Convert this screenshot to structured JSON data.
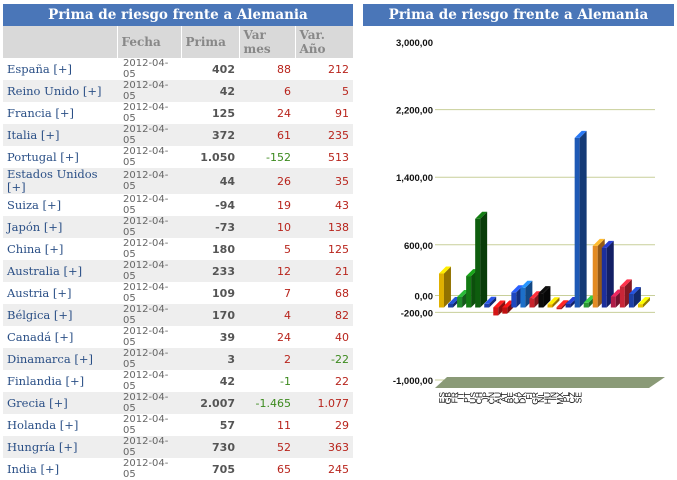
{
  "table_title": "Prima de riesgo frente a Alemania",
  "chart_title": "Prima de riesgo frente a Alemania",
  "headers": [
    "",
    "Fecha",
    "Prima",
    "Var mes",
    "Var. Año"
  ],
  "rows": [
    {
      "pais": "España [+]",
      "fecha": "2012-04-05",
      "prima": "402",
      "mes": "88",
      "anio": "212"
    },
    {
      "pais": "Reino Unido [+]",
      "fecha": "2012-04-05",
      "prima": "42",
      "mes": "6",
      "anio": "5"
    },
    {
      "pais": "Francia [+]",
      "fecha": "2012-04-05",
      "prima": "125",
      "mes": "24",
      "anio": "91"
    },
    {
      "pais": "Italia [+]",
      "fecha": "2012-04-05",
      "prima": "372",
      "mes": "61",
      "anio": "235"
    },
    {
      "pais": "Portugal [+]",
      "fecha": "2012-04-05",
      "prima": "1.050",
      "mes": "-152",
      "anio": "513"
    },
    {
      "pais": "Estados Unidos [+]",
      "fecha": "2012-04-05",
      "prima": "44",
      "mes": "26",
      "anio": "35"
    },
    {
      "pais": "Suiza [+]",
      "fecha": "2012-04-05",
      "prima": "-94",
      "mes": "19",
      "anio": "43"
    },
    {
      "pais": "Japón [+]",
      "fecha": "2012-04-05",
      "prima": "-73",
      "mes": "10",
      "anio": "138"
    },
    {
      "pais": "China [+]",
      "fecha": "2012-04-05",
      "prima": "180",
      "mes": "5",
      "anio": "125"
    },
    {
      "pais": "Australia [+]",
      "fecha": "2012-04-05",
      "prima": "233",
      "mes": "12",
      "anio": "21"
    },
    {
      "pais": "Austria [+]",
      "fecha": "2012-04-05",
      "prima": "109",
      "mes": "7",
      "anio": "68"
    },
    {
      "pais": "Bélgica [+]",
      "fecha": "2012-04-05",
      "prima": "170",
      "mes": "4",
      "anio": "82"
    },
    {
      "pais": "Canadá [+]",
      "fecha": "2012-04-05",
      "prima": "39",
      "mes": "24",
      "anio": "40"
    },
    {
      "pais": "Dinamarca [+]",
      "fecha": "2012-04-05",
      "prima": "3",
      "mes": "2",
      "anio": "-22"
    },
    {
      "pais": "Finlandia [+]",
      "fecha": "2012-04-05",
      "prima": "42",
      "mes": "-1",
      "anio": "22"
    },
    {
      "pais": "Grecia [+]",
      "fecha": "2012-04-05",
      "prima": "2.007",
      "mes": "-1.465",
      "anio": "1.077"
    },
    {
      "pais": "Holanda [+]",
      "fecha": "2012-04-05",
      "prima": "57",
      "mes": "11",
      "anio": "29"
    },
    {
      "pais": "Hungría [+]",
      "fecha": "2012-04-05",
      "prima": "730",
      "mes": "52",
      "anio": "363"
    },
    {
      "pais": "India [+]",
      "fecha": "2012-04-05",
      "prima": "705",
      "mes": "65",
      "anio": "245"
    }
  ],
  "chart_data": {
    "type": "bar",
    "categories": [
      "ES",
      "GB",
      "FR",
      "IT",
      "PT",
      "US",
      "CH",
      "JP",
      "CN",
      "AU",
      "AT",
      "BE",
      "CA",
      "DK",
      "FI",
      "GR",
      "NL",
      "HU",
      "IN",
      "MX",
      "PL",
      "CZ",
      "SE"
    ],
    "values": [
      402,
      42,
      125,
      372,
      1050,
      44,
      -94,
      -73,
      180,
      233,
      109,
      170,
      39,
      3,
      42,
      2007,
      57,
      730,
      705,
      130,
      250,
      160,
      40
    ],
    "colors": [
      "#e0b000",
      "#1b3f9e",
      "#1f8a2a",
      "#137a13",
      "#0e5d0e",
      "#1f3fae",
      "#d41616",
      "#c01010",
      "#1f47c0",
      "#1d6fc9",
      "#c8232c",
      "#0b0b0b",
      "#e5b000",
      "#c81c1c",
      "#1d2f9c",
      "#1e59b5",
      "#2c9a34",
      "#e38b23",
      "#1d2f9c",
      "#b01c48",
      "#c82638",
      "#1c3fa6",
      "#e8c400"
    ],
    "yticks": [
      3000,
      2200,
      1400,
      600,
      0,
      -200,
      -1000
    ],
    "ytick_labels": [
      "3,000,00",
      "2,200,00",
      "1,400,00",
      "600,00",
      "0,00",
      "-200,00",
      "-1,000,00"
    ],
    "ylim": [
      -1000,
      3000
    ],
    "grid": true,
    "title": "Prima de riesgo frente a Alemania"
  }
}
